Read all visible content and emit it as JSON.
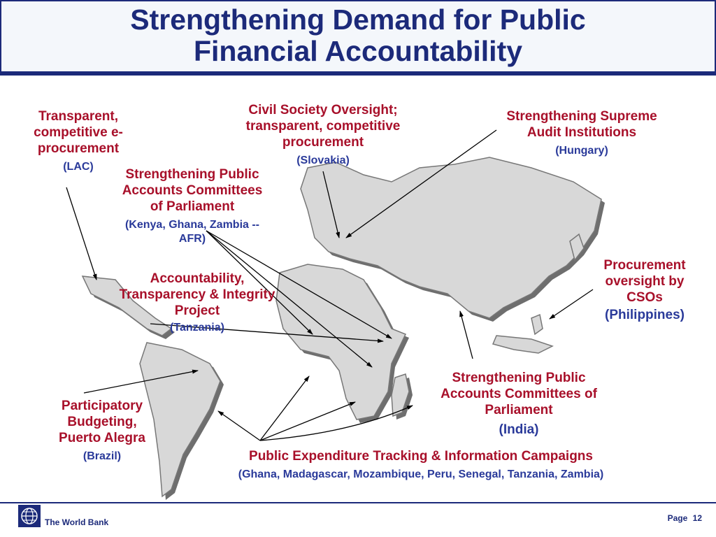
{
  "slide": {
    "title_line1": "Strengthening Demand for Public",
    "title_line2": "Financial Accountability",
    "colors": {
      "title": "#1c2a7a",
      "label_red": "#a8102a",
      "label_blue": "#2a3a9a"
    }
  },
  "labels": {
    "eproc": {
      "line1": "Transparent,",
      "line2": "competitive e-",
      "line3": "procurement",
      "region": "(LAC)"
    },
    "civil": {
      "line1": "Civil Society Oversight;",
      "line2": "transparent, competitive",
      "line3": "procurement",
      "region": "(Slovakia)"
    },
    "sai": {
      "line1": "Strengthening Supreme",
      "line2": "Audit Institutions",
      "region": "(Hungary)"
    },
    "pac_afr": {
      "line1": "Strengthening Public",
      "line2": "Accounts Committees",
      "line3": "of Parliament",
      "region_line1": "(Kenya, Ghana, Zambia --",
      "region_line2": "AFR)"
    },
    "atip": {
      "line1": "Accountability,",
      "line2": "Transparency & Integrity",
      "line3": "Project",
      "region": "(Tanzania)"
    },
    "proc_csos": {
      "line1": "Procurement",
      "line2": "oversight by",
      "line3": "CSOs",
      "region": "(Philippines)"
    },
    "pac_india": {
      "line1": "Strengthening Public",
      "line2": "Accounts Committees of",
      "line3": "Parliament",
      "region": "(India)"
    },
    "participatory": {
      "line1": "Participatory",
      "line2": "Budgeting,",
      "line3": "Puerto Alegra",
      "region": "(Brazil)"
    },
    "pets": {
      "line1": "Public Expenditure Tracking & Information Campaigns",
      "region": "(Ghana, Madagascar, Mozambique, Peru, Senegal, Tanzania, Zambia)"
    }
  },
  "footer": {
    "org": "The World Bank",
    "page_label": "Page",
    "page_number": "12",
    "logo_icon": "globe-icon"
  }
}
